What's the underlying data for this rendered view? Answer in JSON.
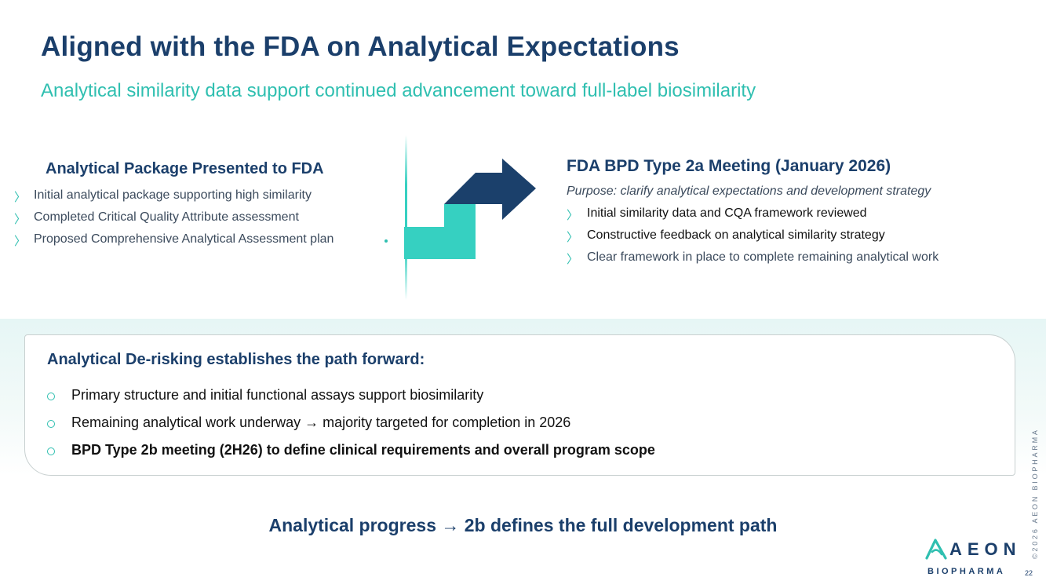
{
  "title": "Aligned with the FDA on Analytical Expectations",
  "subtitle": "Analytical similarity data support continued advancement toward full-label biosimilarity",
  "left": {
    "heading": "Analytical Package Presented to FDA",
    "items": [
      "Initial analytical package supporting high similarity",
      "Completed Critical Quality Attribute assessment",
      "Proposed Comprehensive Analytical Assessment plan"
    ]
  },
  "right": {
    "heading": "FDA BPD Type 2a Meeting (January 2026)",
    "purpose": "Purpose:  clarify analytical expectations and development strategy",
    "items": [
      "Initial similarity data and CQA framework reviewed",
      "Constructive feedback on analytical similarity strategy",
      "Clear framework in place to complete remaining analytical work"
    ]
  },
  "derisk": {
    "heading": "Analytical De-risking establishes the path forward:",
    "items": [
      "Primary structure and initial functional assays support biosimilarity",
      "Remaining analytical work underway → majority targeted for completion in 2026",
      "BPD Type 2b meeting (2H26) to define clinical requirements and overall program scope"
    ]
  },
  "footer": "Analytical progress → 2b defines the full development path",
  "logo": {
    "name": "AEON",
    "sub": "BIOPHARMA"
  },
  "copyright": "©2026 AEON BIOPHARMA",
  "page_number": "22",
  "bullet_glyph": "〉",
  "colors": {
    "navy": "#1b3f6b",
    "teal": "#2fbfb0",
    "arrow_teal": "#36d0c1",
    "arrow_navy": "#1b406b"
  }
}
